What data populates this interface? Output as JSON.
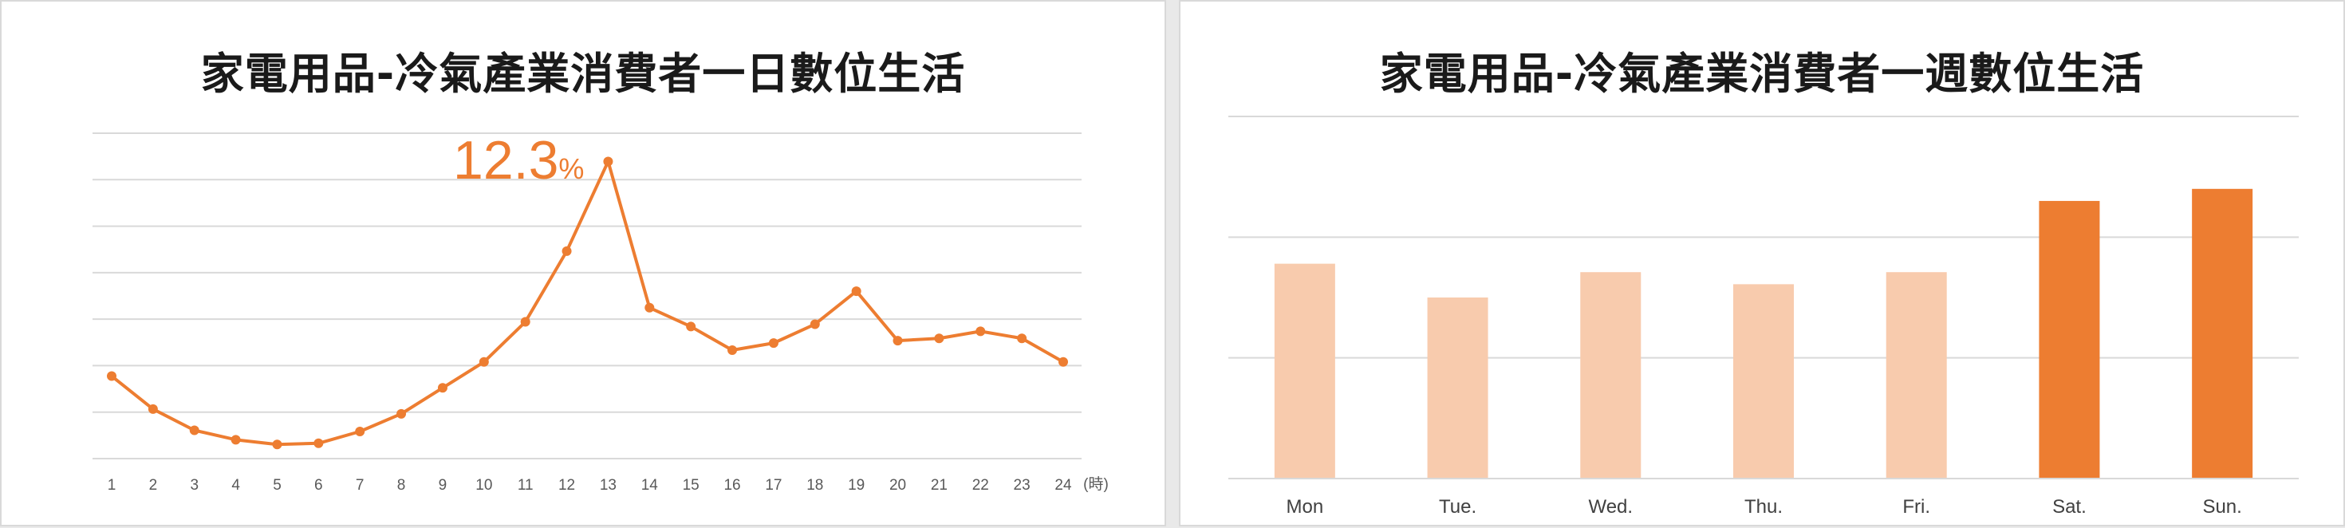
{
  "colors": {
    "accent": "#ED7D31",
    "light": "#F8CBAD",
    "grid": "#D9D9D9"
  },
  "chart_data": [
    {
      "type": "line",
      "title": "家電用品-冷氣產業消費者一日數位生活",
      "x": [
        1,
        2,
        3,
        4,
        5,
        6,
        7,
        8,
        9,
        10,
        11,
        12,
        13,
        14,
        15,
        16,
        17,
        18,
        19,
        20,
        21,
        22,
        23,
        24
      ],
      "x_unit": "(時)",
      "values": [
        3.2,
        1.8,
        0.9,
        0.5,
        0.3,
        0.35,
        0.85,
        1.6,
        2.7,
        3.8,
        5.5,
        8.5,
        12.3,
        6.1,
        5.3,
        4.3,
        4.6,
        5.4,
        6.8,
        4.7,
        4.8,
        5.1,
        4.8,
        3.8
      ],
      "ylim": [
        -0.3,
        13.5
      ],
      "peak_label": {
        "value": "12.3",
        "suffix": "%"
      },
      "series_color": "#ED7D31",
      "grid": true
    },
    {
      "type": "bar",
      "title": "家電用品-冷氣產業消費者一週數位生活",
      "categories": [
        "Mon",
        "Tue.",
        "Wed.",
        "Thu.",
        "Fri.",
        "Sat.",
        "Sun."
      ],
      "values": [
        17.8,
        15.0,
        17.1,
        16.1,
        17.1,
        23.0,
        24.0
      ],
      "highlight": [
        false,
        false,
        false,
        false,
        false,
        true,
        true
      ],
      "ylim": [
        0,
        30
      ],
      "grid": true
    }
  ]
}
